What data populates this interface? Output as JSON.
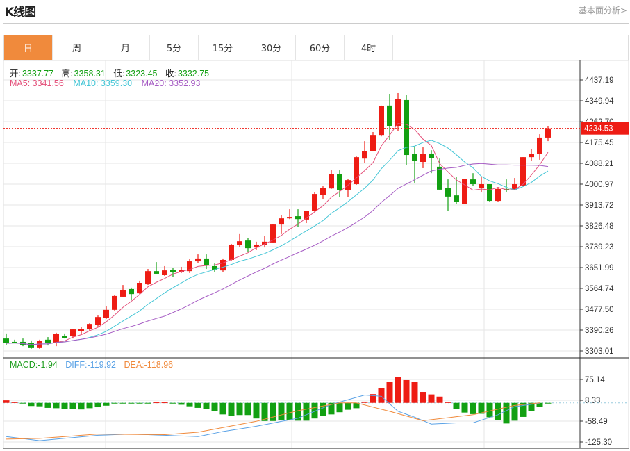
{
  "header": {
    "title": "K线图",
    "link": "基本面分析>"
  },
  "tabs": [
    {
      "label": "日",
      "active": true
    },
    {
      "label": "周"
    },
    {
      "label": "月"
    },
    {
      "label": "5分"
    },
    {
      "label": "15分"
    },
    {
      "label": "30分"
    },
    {
      "label": "60分"
    },
    {
      "label": "4时"
    }
  ],
  "legend": {
    "open_label": "开:",
    "open": "3337.77",
    "high_label": "高:",
    "high": "3358.31",
    "low_label": "低:",
    "low": "3323.45",
    "close_label": "收:",
    "close": "3332.75",
    "ma5": "MA5: 3341.56",
    "ma10": "MA10: 3359.30",
    "ma20": "MA20: 3352.93"
  },
  "macd_legend": {
    "macd": "MACD:-1.94",
    "diff": "DIFF:-119.92",
    "dea": "DEA:-118.96"
  },
  "colors": {
    "up": "#EE1C14",
    "down": "#12A012",
    "ma5": "#E4507A",
    "ma10": "#45C6D6",
    "ma20": "#A65CC4",
    "diff": "#5AA2E6",
    "dea": "#F08A3C",
    "accent": "#F08A3C"
  },
  "chart_data": [
    {
      "type": "candlestick",
      "price_axis": {
        "ticks": [
          "4437.19",
          "4349.94",
          "4262.70",
          "4175.45",
          "4088.21",
          "4000.97",
          "3913.72",
          "3826.48",
          "3739.23",
          "3651.99",
          "3564.74",
          "3477.50",
          "3390.26",
          "3303.01"
        ],
        "ylim": [
          3303.01,
          4437.19
        ]
      },
      "last_price": "4234.53",
      "ohlc": [
        [
          3355,
          3376,
          3329,
          3335
        ],
        [
          3341,
          3350,
          3335,
          3338
        ],
        [
          3341,
          3355,
          3323,
          3329
        ],
        [
          3335,
          3347,
          3312,
          3315
        ],
        [
          3315,
          3350,
          3312,
          3344
        ],
        [
          3350,
          3361,
          3326,
          3335
        ],
        [
          3338,
          3379,
          3323,
          3373
        ],
        [
          3367,
          3376,
          3355,
          3358
        ],
        [
          3364,
          3396,
          3355,
          3393
        ],
        [
          3387,
          3402,
          3376,
          3396
        ],
        [
          3396,
          3419,
          3387,
          3416
        ],
        [
          3413,
          3451,
          3405,
          3445
        ],
        [
          3440,
          3489,
          3437,
          3475
        ],
        [
          3475,
          3536,
          3472,
          3533
        ],
        [
          3530,
          3579,
          3527,
          3559
        ],
        [
          3562,
          3568,
          3515,
          3541
        ],
        [
          3544,
          3597,
          3541,
          3588
        ],
        [
          3582,
          3646,
          3579,
          3637
        ],
        [
          3637,
          3675,
          3623,
          3626
        ],
        [
          3620,
          3658,
          3617,
          3640
        ],
        [
          3643,
          3652,
          3614,
          3632
        ],
        [
          3632,
          3655,
          3629,
          3643
        ],
        [
          3637,
          3687,
          3629,
          3678
        ],
        [
          3678,
          3707,
          3672,
          3690
        ],
        [
          3690,
          3707,
          3646,
          3661
        ],
        [
          3658,
          3669,
          3632,
          3643
        ],
        [
          3640,
          3690,
          3632,
          3684
        ],
        [
          3684,
          3751,
          3681,
          3748
        ],
        [
          3745,
          3792,
          3739,
          3762
        ],
        [
          3765,
          3777,
          3716,
          3733
        ],
        [
          3736,
          3760,
          3725,
          3748
        ],
        [
          3748,
          3783,
          3736,
          3760
        ],
        [
          3757,
          3835,
          3757,
          3832
        ],
        [
          3832,
          3873,
          3792,
          3858
        ],
        [
          3858,
          3896,
          3855,
          3864
        ],
        [
          3867,
          3896,
          3821,
          3855
        ],
        [
          3853,
          3890,
          3838,
          3888
        ],
        [
          3888,
          3969,
          3885,
          3960
        ],
        [
          3957,
          3992,
          3940,
          3986
        ],
        [
          3983,
          4059,
          3981,
          4042
        ],
        [
          4042,
          4059,
          3946,
          3975
        ],
        [
          3975,
          4024,
          3946,
          4018
        ],
        [
          4001,
          4117,
          3998,
          4114
        ],
        [
          4108,
          4181,
          4091,
          4140
        ],
        [
          4140,
          4219,
          4140,
          4207
        ],
        [
          4207,
          4330,
          4201,
          4327
        ],
        [
          4330,
          4379,
          4187,
          4245
        ],
        [
          4245,
          4382,
          4222,
          4356
        ],
        [
          4353,
          4376,
          4082,
          4123
        ],
        [
          4126,
          4161,
          4007,
          4097
        ],
        [
          4094,
          4155,
          4068,
          4126
        ],
        [
          4129,
          4143,
          4047,
          4111
        ],
        [
          4074,
          4108,
          3975,
          3978
        ],
        [
          3986,
          4021,
          3890,
          3949
        ],
        [
          3954,
          4030,
          3919,
          3928
        ],
        [
          3919,
          4024,
          3917,
          4024
        ],
        [
          4021,
          4047,
          3995,
          4001
        ],
        [
          3986,
          4030,
          3966,
          4001
        ],
        [
          4001,
          4001,
          3928,
          3931
        ],
        [
          3931,
          3989,
          3928,
          3981
        ],
        [
          3981,
          4021,
          3966,
          3975
        ],
        [
          3978,
          4027,
          3975,
          4001
        ],
        [
          3995,
          4114,
          3992,
          4114
        ],
        [
          4114,
          4149,
          4097,
          4126
        ],
        [
          4126,
          4210,
          4103,
          4196
        ],
        [
          4196,
          4245,
          4181,
          4234.53
        ]
      ],
      "ohlc_order": [
        "open",
        "high",
        "low",
        "close"
      ],
      "moving_averages": [
        5,
        10,
        20
      ]
    },
    {
      "type": "bar+line",
      "macd_axis": {
        "ticks": [
          "75.14",
          "8.33",
          "-58.49",
          "-125.30"
        ],
        "ylim": [
          -125.3,
          75.14
        ]
      },
      "histogram": [
        8,
        2,
        -2,
        -10,
        -11,
        -16,
        -17,
        -20,
        -20,
        -21,
        -17,
        -14,
        -9,
        -2,
        -1,
        -1,
        -0.5,
        -0.5,
        1.5,
        1.5,
        -2,
        -6,
        -11,
        -16,
        -19,
        -27,
        -37,
        -41,
        -39,
        -39,
        -50,
        -58,
        -58,
        -54,
        -54,
        -57,
        -57,
        -50,
        -42,
        -37,
        -30,
        -22,
        -17,
        4,
        28,
        47,
        68,
        82,
        73,
        68,
        35,
        27,
        20,
        2,
        -20,
        -31,
        -36,
        -35,
        -46,
        -56,
        -66,
        -57,
        -45,
        -26,
        -12,
        -2
      ],
      "diff": [
        [
          1,
          -108
        ],
        [
          5,
          -121
        ],
        [
          12,
          -104
        ],
        [
          16,
          -100
        ],
        [
          20,
          -104
        ],
        [
          24,
          -108
        ],
        [
          27,
          -92
        ],
        [
          31,
          -75
        ],
        [
          36,
          -49
        ],
        [
          40,
          -5
        ],
        [
          44,
          25
        ],
        [
          46,
          21
        ],
        [
          48,
          -27
        ],
        [
          50,
          -46
        ],
        [
          52,
          -68
        ],
        [
          55,
          -64
        ],
        [
          57,
          -64
        ],
        [
          60,
          -38
        ],
        [
          62,
          -12
        ],
        [
          65,
          -1
        ]
      ],
      "dea": [
        [
          1,
          -116
        ],
        [
          5,
          -114
        ],
        [
          12,
          -100
        ],
        [
          20,
          -102
        ],
        [
          24,
          -94
        ],
        [
          31,
          -59
        ],
        [
          36,
          -25
        ],
        [
          41,
          0
        ],
        [
          43,
          0
        ],
        [
          47,
          -27
        ],
        [
          51,
          -57
        ],
        [
          57,
          -38
        ],
        [
          62,
          -8
        ],
        [
          65,
          0
        ]
      ]
    }
  ]
}
